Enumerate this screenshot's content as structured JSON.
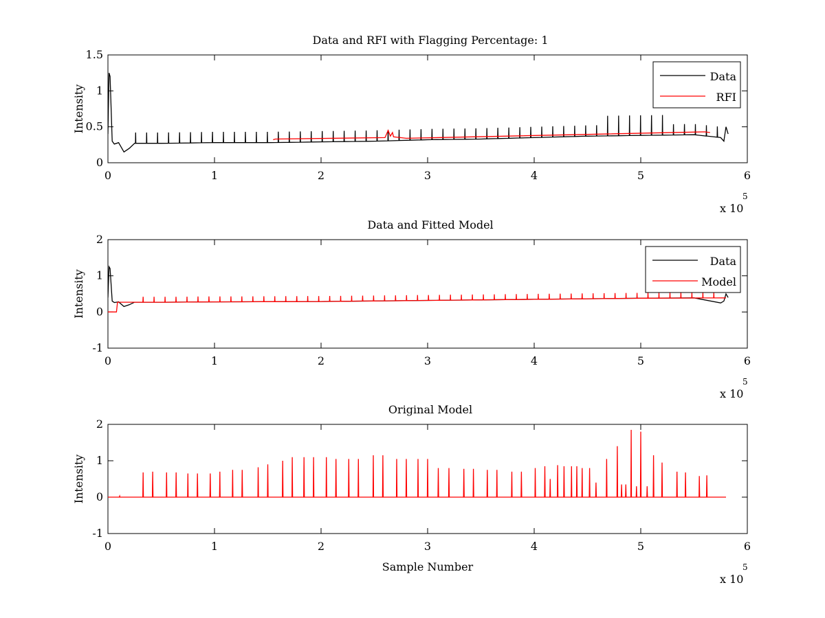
{
  "chart_data": [
    {
      "type": "line",
      "title": "Data and RFI with Flagging Percentage: 1",
      "xlabel": "",
      "ylabel": "Intensity",
      "xlim": [
        0,
        6
      ],
      "ylim": [
        0,
        1.5
      ],
      "xticks": [
        "0",
        "1",
        "2",
        "3",
        "4",
        "5",
        "6"
      ],
      "yticks": [
        "0",
        "0.5",
        "1",
        "1.5"
      ],
      "x_exponent": {
        "base": "x 10",
        "power": "5"
      },
      "legend": "top-right",
      "series": [
        {
          "name": "Data",
          "color": "#000000",
          "x": [
            0,
            0.01,
            0.02,
            0.04,
            0.06,
            0.1,
            0.15,
            0.2,
            0.25,
            0.5,
            1.0,
            1.5,
            2.0,
            2.5,
            3.0,
            3.5,
            4.0,
            4.5,
            5.0,
            5.5,
            5.75,
            5.78,
            5.8,
            5.82
          ],
          "values": [
            0.4,
            1.25,
            1.2,
            0.3,
            0.26,
            0.28,
            0.15,
            0.2,
            0.27,
            0.27,
            0.28,
            0.28,
            0.29,
            0.3,
            0.32,
            0.33,
            0.35,
            0.37,
            0.38,
            0.39,
            0.35,
            0.3,
            0.5,
            0.4
          ]
        },
        {
          "name": "RFI",
          "color": "#ff0000",
          "x": [
            1.55,
            1.57,
            2.6,
            2.63,
            2.65,
            2.67,
            2.68,
            2.8,
            5.6,
            5.65
          ],
          "values": [
            0.32,
            0.33,
            0.35,
            0.45,
            0.37,
            0.42,
            0.36,
            0.34,
            0.43,
            0.42
          ]
        }
      ]
    },
    {
      "type": "line",
      "title": "Data and Fitted Model",
      "xlabel": "",
      "ylabel": "Intensity",
      "xlim": [
        0,
        6
      ],
      "ylim": [
        -1,
        2
      ],
      "xticks": [
        "0",
        "1",
        "2",
        "3",
        "4",
        "5",
        "6"
      ],
      "yticks": [
        "-1",
        "0",
        "1",
        "2"
      ],
      "x_exponent": {
        "base": "x 10",
        "power": "5"
      },
      "legend": "top-right",
      "series": [
        {
          "name": "Data",
          "color": "#000000",
          "x": [
            0,
            0.01,
            0.02,
            0.04,
            0.06,
            0.1,
            0.15,
            0.2,
            0.25,
            0.5,
            1.0,
            2.0,
            3.0,
            4.0,
            5.0,
            5.5,
            5.75,
            5.78,
            5.8,
            5.82
          ],
          "values": [
            0.4,
            1.25,
            1.2,
            0.3,
            0.26,
            0.28,
            0.15,
            0.2,
            0.27,
            0.27,
            0.28,
            0.29,
            0.32,
            0.35,
            0.38,
            0.39,
            0.25,
            0.3,
            0.5,
            0.4
          ]
        },
        {
          "name": "Model",
          "color": "#ff0000",
          "x": [
            0,
            0.08,
            0.09,
            0.5,
            1.0,
            2.0,
            3.0,
            4.0,
            5.0,
            5.8
          ],
          "values": [
            0.0,
            0.0,
            0.27,
            0.27,
            0.28,
            0.29,
            0.32,
            0.35,
            0.38,
            0.39
          ]
        }
      ]
    },
    {
      "type": "line",
      "title": "Original Model",
      "xlabel": "Sample Number",
      "ylabel": "Intensity",
      "xlim": [
        0,
        6
      ],
      "ylim": [
        -1,
        2
      ],
      "xticks": [
        "0",
        "1",
        "2",
        "3",
        "4",
        "5",
        "6"
      ],
      "yticks": [
        "-1",
        "0",
        "1",
        "2"
      ],
      "x_exponent": {
        "base": "x 10",
        "power": "5"
      },
      "legend": "none",
      "series": [
        {
          "color": "#ff0000",
          "x": [
            0.11,
            0.33,
            0.42,
            0.55,
            0.64,
            0.75,
            0.84,
            0.96,
            1.05,
            1.17,
            1.26,
            1.41,
            1.5,
            1.64,
            1.73,
            1.84,
            1.93,
            2.05,
            2.14,
            2.26,
            2.35,
            2.49,
            2.58,
            2.71,
            2.8,
            2.91,
            3.0,
            3.1,
            3.2,
            3.34,
            3.43,
            3.56,
            3.65,
            3.79,
            3.88,
            4.01,
            4.1,
            4.15,
            4.22,
            4.28,
            4.35,
            4.4,
            4.45,
            4.52,
            4.58,
            4.68,
            4.78,
            4.82,
            4.86,
            4.91,
            4.96,
            5.0,
            5.06,
            5.12,
            5.2,
            5.34,
            5.42,
            5.55,
            5.62
          ],
          "values": [
            0.03,
            0.68,
            0.7,
            0.68,
            0.68,
            0.65,
            0.65,
            0.65,
            0.7,
            0.75,
            0.75,
            0.82,
            0.9,
            1.0,
            1.1,
            1.1,
            1.1,
            1.1,
            1.05,
            1.05,
            1.05,
            1.15,
            1.15,
            1.05,
            1.05,
            1.05,
            1.05,
            0.8,
            0.8,
            0.78,
            0.78,
            0.75,
            0.75,
            0.7,
            0.7,
            0.8,
            0.85,
            0.5,
            0.88,
            0.85,
            0.85,
            0.85,
            0.8,
            0.8,
            0.4,
            1.05,
            1.4,
            0.35,
            0.35,
            1.85,
            0.3,
            1.8,
            0.3,
            1.15,
            0.95,
            0.7,
            0.68,
            0.58,
            0.6
          ]
        }
      ]
    }
  ]
}
